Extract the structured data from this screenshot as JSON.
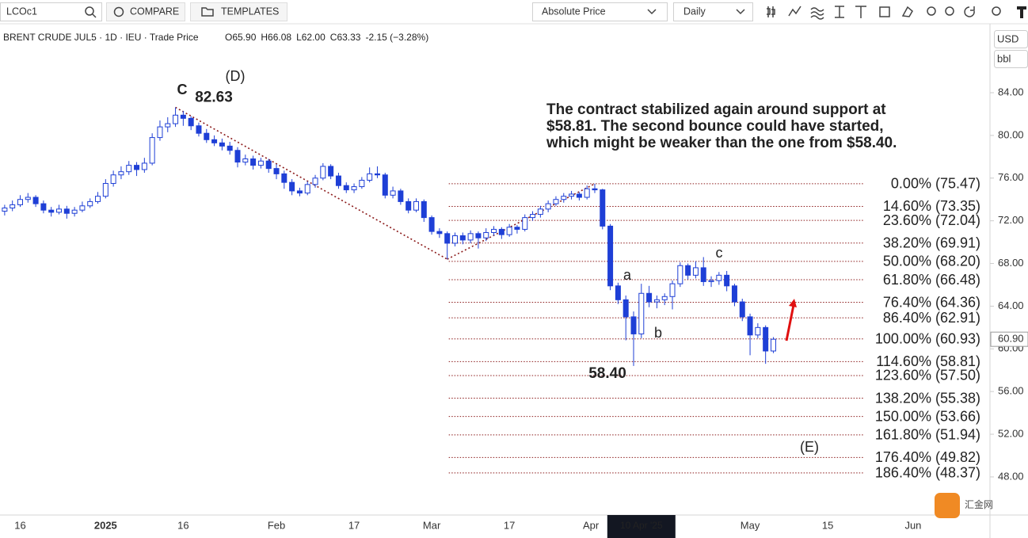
{
  "toolbar": {
    "symbol": "LCOc1",
    "compare": "COMPARE",
    "templates": "TEMPLATES",
    "price_mode": "Absolute Price",
    "interval": "Daily"
  },
  "legend": {
    "symbol": "BRENT CRUDE JUL5 · 1D · IEU · Trade Price",
    "readout": [
      "O65.90",
      "H66.08",
      "L62.00",
      "C63.33",
      "-2.15 (−3.28%)"
    ]
  },
  "currency": "USD",
  "unit": "bbl",
  "watermark": "汇金网",
  "chart_data": {
    "type": "candlestick",
    "up_color": "#ffffff",
    "down_color": "#1e3fd6",
    "border_color": "#1e3fd6",
    "fib_color": "#8b1a1a",
    "xlim": [
      -0.6,
      126.9
    ],
    "ylim": [
      44.43,
      90.09
    ],
    "xticks": [
      {
        "value": 2,
        "label": "16"
      },
      {
        "value": 13,
        "label": "2025"
      },
      {
        "value": 23,
        "label": "16"
      },
      {
        "value": 35,
        "label": "Feb"
      },
      {
        "value": 45,
        "label": "17"
      },
      {
        "value": 55,
        "label": "Mar"
      },
      {
        "value": 65,
        "label": "17"
      },
      {
        "value": 75.5,
        "label": "Apr"
      },
      {
        "value": 96,
        "label": "May"
      },
      {
        "value": 106,
        "label": "15"
      },
      {
        "value": 117,
        "label": "Jun"
      }
    ],
    "yticks": [
      {
        "value": 84,
        "label": "84.00"
      },
      {
        "value": 80,
        "label": "80.00"
      },
      {
        "value": 76,
        "label": "76.00"
      },
      {
        "value": 72,
        "label": "72.00"
      },
      {
        "value": 68,
        "label": "68.00"
      },
      {
        "value": 64,
        "label": "64.00"
      },
      {
        "value": 60,
        "label": "60.00"
      },
      {
        "value": 56,
        "label": "56.00"
      },
      {
        "value": 52,
        "label": "52.00"
      },
      {
        "value": 48,
        "label": "48.00"
      }
    ],
    "crosshair_x": {
      "value": 82,
      "label": "10 Apr '25"
    },
    "last_price": {
      "value": 60.9,
      "label": "60.90"
    },
    "ohlc": [
      [
        72.9,
        73.5,
        72.5,
        73.2
      ],
      [
        73.2,
        73.9,
        72.9,
        73.5
      ],
      [
        73.5,
        74.4,
        73.3,
        74.0
      ],
      [
        74.0,
        74.6,
        73.7,
        74.2
      ],
      [
        74.2,
        74.4,
        73.3,
        73.6
      ],
      [
        73.6,
        73.9,
        72.7,
        73.0
      ],
      [
        73.0,
        73.3,
        72.4,
        72.8
      ],
      [
        72.8,
        73.5,
        72.6,
        73.1
      ],
      [
        73.1,
        73.4,
        72.2,
        72.7
      ],
      [
        72.7,
        73.3,
        72.4,
        73.0
      ],
      [
        73.0,
        73.8,
        72.8,
        73.4
      ],
      [
        73.4,
        74.1,
        73.2,
        73.8
      ],
      [
        73.8,
        74.7,
        73.6,
        74.3
      ],
      [
        74.3,
        75.9,
        74.1,
        75.5
      ],
      [
        75.5,
        76.7,
        75.2,
        76.3
      ],
      [
        76.3,
        77.1,
        75.9,
        76.6
      ],
      [
        76.6,
        77.6,
        76.3,
        77.2
      ],
      [
        77.2,
        77.5,
        76.2,
        76.8
      ],
      [
        76.8,
        77.9,
        76.5,
        77.4
      ],
      [
        77.4,
        80.2,
        77.2,
        79.8
      ],
      [
        79.8,
        81.4,
        79.5,
        80.8
      ],
      [
        80.8,
        81.7,
        80.3,
        81.1
      ],
      [
        81.1,
        82.63,
        80.8,
        81.9
      ],
      [
        81.9,
        82.3,
        80.9,
        81.6
      ],
      [
        81.6,
        81.8,
        80.5,
        80.9
      ],
      [
        80.9,
        81.2,
        79.9,
        80.2
      ],
      [
        80.2,
        80.6,
        79.3,
        79.6
      ],
      [
        79.6,
        80.0,
        79.0,
        79.3
      ],
      [
        79.3,
        79.7,
        78.6,
        79.0
      ],
      [
        79.0,
        79.4,
        78.2,
        78.6
      ],
      [
        78.6,
        78.9,
        77.0,
        77.5
      ],
      [
        77.5,
        78.2,
        77.2,
        77.8
      ],
      [
        77.8,
        78.1,
        76.8,
        77.2
      ],
      [
        77.2,
        77.9,
        76.9,
        77.6
      ],
      [
        77.6,
        77.8,
        76.5,
        76.9
      ],
      [
        76.9,
        77.3,
        75.9,
        76.4
      ],
      [
        76.4,
        76.7,
        75.0,
        75.6
      ],
      [
        75.6,
        75.9,
        74.4,
        74.8
      ],
      [
        74.8,
        75.1,
        74.3,
        74.6
      ],
      [
        74.6,
        75.7,
        74.4,
        75.4
      ],
      [
        75.4,
        76.3,
        75.1,
        76.0
      ],
      [
        76.0,
        77.4,
        75.8,
        77.1
      ],
      [
        77.1,
        77.3,
        75.9,
        76.2
      ],
      [
        76.2,
        76.5,
        75.0,
        75.3
      ],
      [
        75.3,
        75.6,
        74.6,
        74.9
      ],
      [
        74.9,
        75.5,
        74.6,
        75.2
      ],
      [
        75.2,
        76.1,
        75.0,
        75.8
      ],
      [
        75.8,
        77.0,
        75.6,
        76.4
      ],
      [
        76.4,
        77.1,
        76.0,
        76.3
      ],
      [
        76.3,
        76.5,
        74.1,
        74.4
      ],
      [
        74.4,
        75.2,
        74.1,
        74.8
      ],
      [
        74.8,
        75.0,
        73.5,
        73.8
      ],
      [
        73.8,
        74.1,
        72.7,
        73.0
      ],
      [
        73.0,
        74.1,
        72.8,
        73.8
      ],
      [
        73.8,
        74.0,
        71.9,
        72.3
      ],
      [
        72.3,
        72.5,
        70.7,
        71.0
      ],
      [
        71.0,
        71.3,
        70.4,
        70.8
      ],
      [
        70.8,
        71.0,
        68.4,
        69.9
      ],
      [
        69.9,
        70.9,
        69.6,
        70.6
      ],
      [
        70.6,
        70.9,
        69.8,
        70.2
      ],
      [
        70.2,
        71.1,
        69.9,
        70.8
      ],
      [
        70.8,
        71.0,
        69.4,
        70.4
      ],
      [
        70.4,
        71.3,
        70.1,
        70.9
      ],
      [
        70.9,
        71.5,
        70.6,
        71.2
      ],
      [
        71.2,
        71.4,
        70.3,
        70.7
      ],
      [
        70.7,
        71.7,
        70.5,
        71.4
      ],
      [
        71.4,
        71.6,
        70.8,
        71.2
      ],
      [
        71.2,
        72.6,
        71.0,
        72.3
      ],
      [
        72.3,
        72.9,
        72.0,
        72.6
      ],
      [
        72.6,
        73.4,
        72.3,
        73.1
      ],
      [
        73.1,
        73.9,
        72.8,
        73.6
      ],
      [
        73.6,
        74.3,
        73.4,
        74.0
      ],
      [
        74.0,
        74.6,
        73.7,
        74.3
      ],
      [
        74.3,
        74.8,
        74.0,
        74.5
      ],
      [
        74.5,
        74.7,
        73.9,
        74.2
      ],
      [
        74.2,
        75.3,
        74.0,
        75.0
      ],
      [
        75.0,
        75.47,
        74.6,
        74.9
      ],
      [
        74.9,
        75.0,
        71.2,
        71.5
      ],
      [
        71.5,
        71.7,
        65.5,
        65.9
      ],
      [
        65.9,
        66.2,
        64.2,
        64.6
      ],
      [
        64.6,
        65.0,
        60.8,
        63.0
      ],
      [
        63.0,
        63.5,
        58.4,
        61.4
      ],
      [
        61.4,
        66.1,
        61.0,
        65.2
      ],
      [
        65.2,
        65.9,
        63.9,
        64.4
      ],
      [
        64.4,
        65.0,
        63.8,
        64.6
      ],
      [
        64.6,
        65.2,
        64.1,
        64.9
      ],
      [
        64.9,
        66.4,
        63.7,
        66.1
      ],
      [
        66.1,
        68.1,
        65.8,
        67.8
      ],
      [
        67.8,
        68.0,
        66.5,
        66.9
      ],
      [
        66.9,
        68.2,
        66.6,
        67.6
      ],
      [
        67.6,
        68.6,
        65.9,
        66.3
      ],
      [
        66.3,
        66.8,
        65.8,
        66.4
      ],
      [
        66.4,
        67.2,
        66.0,
        66.9
      ],
      [
        66.9,
        67.3,
        65.4,
        65.9
      ],
      [
        65.9,
        66.1,
        64.0,
        64.4
      ],
      [
        64.4,
        64.7,
        62.6,
        63.0
      ],
      [
        63.0,
        63.3,
        59.4,
        61.3
      ],
      [
        61.3,
        62.4,
        61.0,
        62.0
      ],
      [
        62.0,
        62.2,
        58.6,
        59.8
      ],
      [
        59.8,
        61.1,
        59.6,
        60.9
      ]
    ],
    "fib_levels": [
      {
        "value": 75.47,
        "label": "0.00% (75.47)"
      },
      {
        "value": 73.35,
        "label": "14.60% (73.35)"
      },
      {
        "value": 72.04,
        "label": "23.60% (72.04)"
      },
      {
        "value": 69.91,
        "label": "38.20% (69.91)"
      },
      {
        "value": 68.2,
        "label": "50.00% (68.20)"
      },
      {
        "value": 66.48,
        "label": "61.80% (66.48)"
      },
      {
        "value": 64.36,
        "label": "76.40% (64.36)"
      },
      {
        "value": 62.91,
        "label": "86.40% (62.91)"
      },
      {
        "value": 60.93,
        "label": "100.00% (60.93)"
      },
      {
        "value": 58.81,
        "label": "114.60% (58.81)"
      },
      {
        "value": 57.5,
        "label": "123.60% (57.50)"
      },
      {
        "value": 55.38,
        "label": "138.20% (55.38)"
      },
      {
        "value": 53.66,
        "label": "150.00% (53.66)"
      },
      {
        "value": 51.94,
        "label": "161.80% (51.94)"
      },
      {
        "value": 49.82,
        "label": "176.40% (49.82)"
      },
      {
        "value": 48.37,
        "label": "186.40% (48.37)"
      }
    ],
    "extreme_labels": [
      {
        "value": 82.63,
        "label": "82.63"
      },
      {
        "value": 58.4,
        "label": "58.40"
      }
    ],
    "wave_labels": [
      "C",
      "(D)",
      "a",
      "b",
      "c",
      "(E)"
    ],
    "commentary": [
      "The contract stabilized again around support at",
      "$58.81. The second bounce could have started,",
      "which might be weaker than the one from $58.40."
    ]
  }
}
